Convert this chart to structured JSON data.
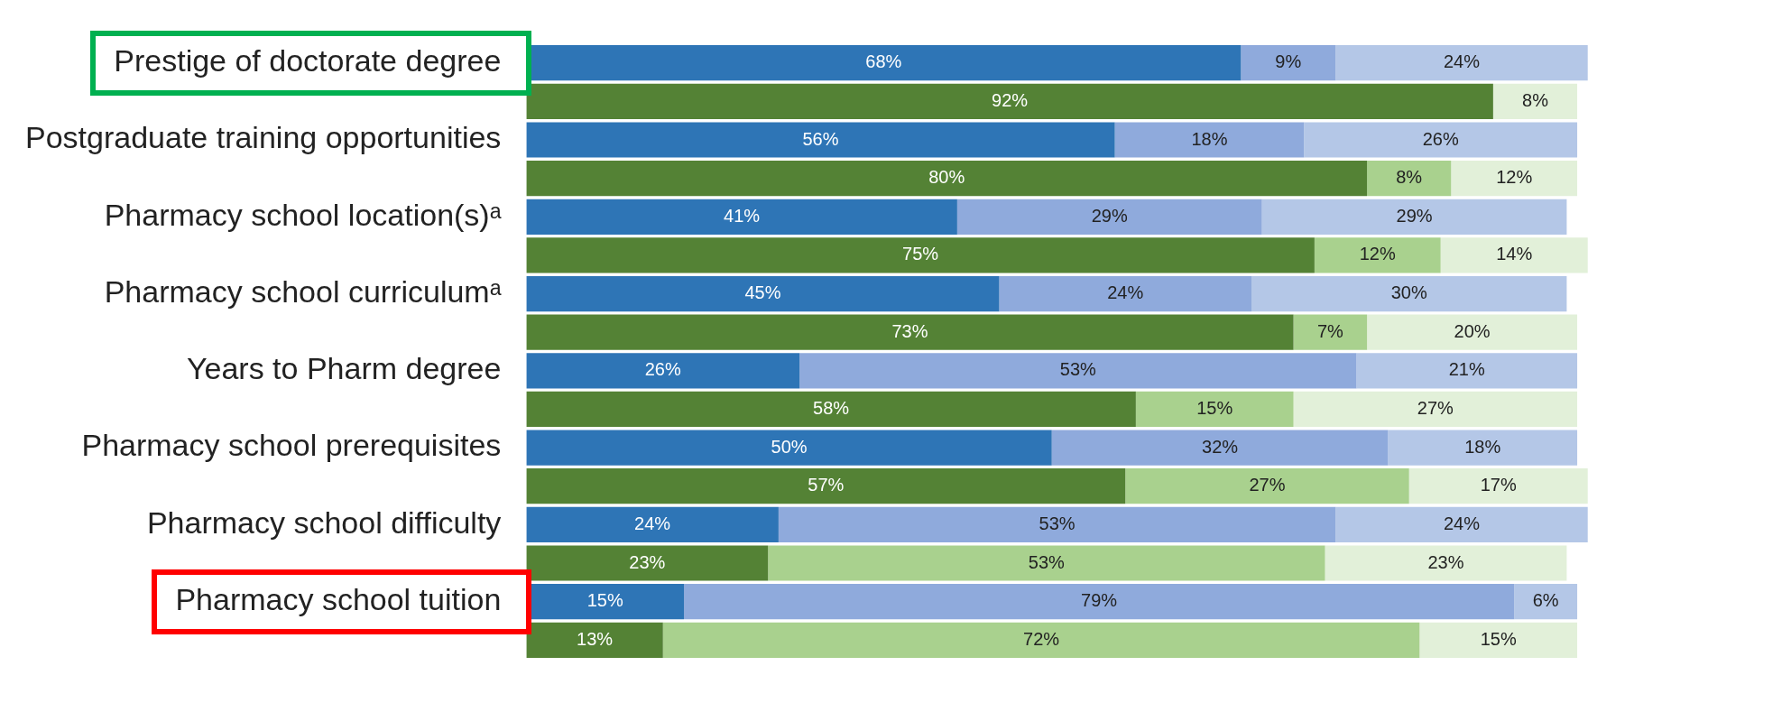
{
  "chart_data": {
    "type": "bar",
    "orientation": "horizontal",
    "stacked": true,
    "tick_labels": "y",
    "grid": false,
    "legend": false,
    "categories": [
      "Prestige of doctorate degree",
      null,
      "Postgraduate training opportunities",
      null,
      "Pharmacy school location(s)ᵃ",
      null,
      "Pharmacy school curriculumᵃ",
      null,
      "Years to Pharm degree",
      null,
      "Pharmacy school prerequisites",
      null,
      "Pharmacy school difficulty",
      null,
      "Pharmacy school tuition",
      null
    ],
    "series": [
      {
        "colors": [
          "#2e75b6",
          "#548235",
          "#2e75b6",
          "#548235",
          "#2e75b6",
          "#548235",
          "#2e75b6",
          "#548235",
          "#2e75b6",
          "#548235",
          "#2e75b6",
          "#548235",
          "#2e75b6",
          "#548235",
          "#2e75b6",
          "#548235"
        ],
        "values": [
          68,
          92,
          56,
          80,
          41,
          75,
          45,
          73,
          26,
          58,
          50,
          57,
          24,
          23,
          15,
          13
        ],
        "value_labels": [
          "68%",
          "92%",
          "56%",
          "80%",
          "41%",
          "75%",
          "45%",
          "73%",
          "26%",
          "58%",
          "50%",
          "57%",
          "24%",
          "23%",
          "15%",
          "13%"
        ]
      },
      {
        "colors": [
          "#8faadc",
          "#a9d18e",
          "#8faadc",
          "#a9d18e",
          "#8faadc",
          "#a9d18e",
          "#8faadc",
          "#a9d18e",
          "#8faadc",
          "#a9d18e",
          "#8faadc",
          "#a9d18e",
          "#8faadc",
          "#a9d18e",
          "#8faadc",
          "#a9d18e"
        ],
        "values": [
          9,
          null,
          18,
          8,
          29,
          12,
          24,
          7,
          53,
          15,
          32,
          27,
          53,
          53,
          79,
          72
        ],
        "value_labels": [
          "9%",
          null,
          "18%",
          "8%",
          "29%",
          "12%",
          "24%",
          "7%",
          "53%",
          "15%",
          "32%",
          "27%",
          "53%",
          "53%",
          "79%",
          "72%"
        ]
      },
      {
        "colors": [
          "#b4c7e7",
          "#e2f0d9",
          "#b4c7e7",
          "#e2f0d9",
          "#b4c7e7",
          "#e2f0d9",
          "#b4c7e7",
          "#e2f0d9",
          "#b4c7e7",
          "#e2f0d9",
          "#b4c7e7",
          "#e2f0d9",
          "#b4c7e7",
          "#e2f0d9",
          "#b4c7e7",
          "#e2f0d9"
        ],
        "values": [
          24,
          8,
          26,
          12,
          29,
          14,
          30,
          20,
          21,
          27,
          18,
          17,
          24,
          23,
          6,
          15
        ],
        "value_labels": [
          "24%",
          "8%",
          "26%",
          "12%",
          "29%",
          "14%",
          "30%",
          "20%",
          "21%",
          "27%",
          "18%",
          "17%",
          "24%",
          "23%",
          "6%",
          "15%"
        ]
      }
    ]
  }
}
